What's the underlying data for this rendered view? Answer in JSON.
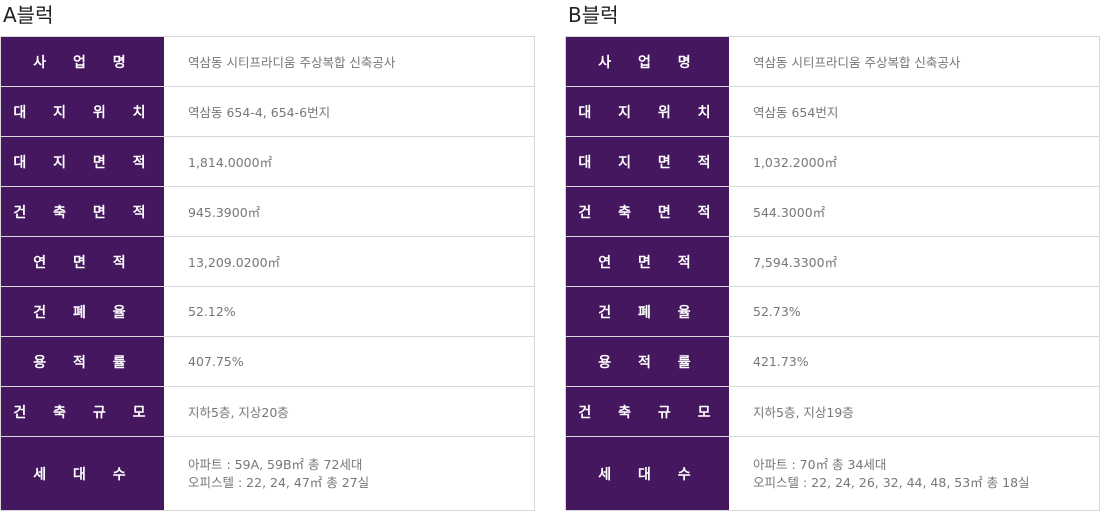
{
  "blocks": [
    {
      "title": "A블럭",
      "rows": [
        {
          "label": "사 업 명",
          "value": "역삼동 시티프라디움 주상복합 신축공사"
        },
        {
          "label": "대 지 위 치",
          "value": "역삼동 654-4, 654-6번지"
        },
        {
          "label": "대 지 면 적",
          "value": "1,814.0000㎡"
        },
        {
          "label": "건 축 면 적",
          "value": "945.3900㎡"
        },
        {
          "label": "연 면 적",
          "value": "13,209.0200㎡"
        },
        {
          "label": "건 폐 율",
          "value": "52.12%"
        },
        {
          "label": "용 적 률",
          "value": "407.75%"
        },
        {
          "label": "건 축 규 모",
          "value": "지하5층, 지상20층"
        },
        {
          "label": "세 대 수",
          "value": "아파트 : 59A, 59B㎡ 총 72세대",
          "value2": "오피스텔 : 22, 24, 47㎡ 총 27실"
        }
      ]
    },
    {
      "title": "B블럭",
      "rows": [
        {
          "label": "사 업 명",
          "value": "역삼동 시티프라디움 주상복합 신축공사"
        },
        {
          "label": "대 지 위 치",
          "value": "역삼동 654번지"
        },
        {
          "label": "대 지 면 적",
          "value": "1,032.2000㎡"
        },
        {
          "label": "건 축 면 적",
          "value": "544.3000㎡"
        },
        {
          "label": "연 면 적",
          "value": "7,594.3300㎡"
        },
        {
          "label": "건 폐 율",
          "value": "52.73%"
        },
        {
          "label": "용 적 률",
          "value": "421.73%"
        },
        {
          "label": "건 축 규 모",
          "value": "지하5층, 지상19층"
        },
        {
          "label": "세 대 수",
          "value": "아파트 : 70㎡ 총 34세대",
          "value2": "오피스텔 : 22, 24, 26, 32, 44, 48, 53㎡ 총 18실"
        }
      ]
    }
  ],
  "colors": {
    "label_bg": "#44175f",
    "label_text": "#ffffff",
    "value_text": "#777777",
    "border": "#d8d8d8"
  }
}
